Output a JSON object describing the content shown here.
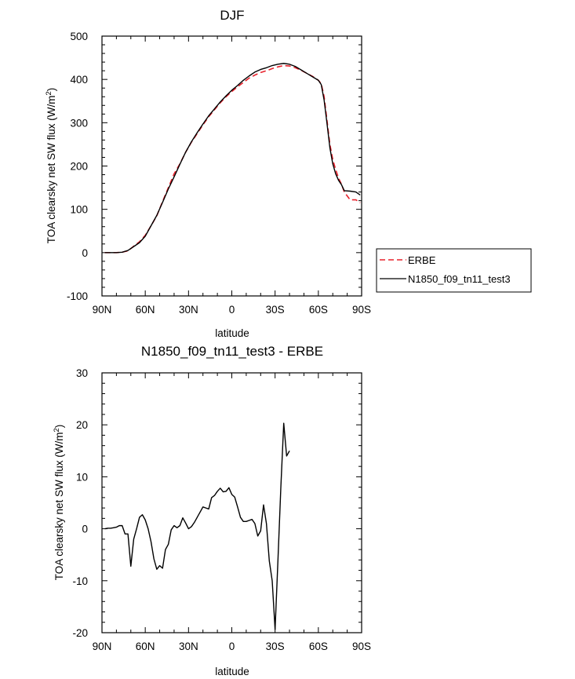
{
  "chart_data": [
    {
      "type": "line",
      "title": "DJF",
      "xlabel": "latitude",
      "ylabel_main": "TOA clearsky net SW flux (W/m",
      "ylabel_sup": "2",
      "ylabel_close": ")",
      "xlim": [
        -90,
        90
      ],
      "ylim": [
        -100,
        500
      ],
      "x_ticks": [
        -90,
        -60,
        -30,
        0,
        30,
        60,
        90
      ],
      "x_tick_labels": [
        "90N",
        "60N",
        "30N",
        "0",
        "30S",
        "60S",
        "90S"
      ],
      "y_ticks": [
        -100,
        0,
        100,
        200,
        300,
        400,
        500
      ],
      "y_tick_labels": [
        "-100",
        "0",
        "100",
        "200",
        "300",
        "400",
        "500"
      ],
      "legend_position": "right",
      "series": [
        {
          "name": "ERBE",
          "color": "#e8222c",
          "dash": "dashed",
          "points": [
            [
              -88,
              0
            ],
            [
              -84,
              0
            ],
            [
              -80,
              0
            ],
            [
              -76,
              1
            ],
            [
              -72,
              4
            ],
            [
              -68,
              15
            ],
            [
              -64,
              25
            ],
            [
              -60,
              40
            ],
            [
              -56,
              62
            ],
            [
              -52,
              85
            ],
            [
              -48,
              118
            ],
            [
              -44,
              150
            ],
            [
              -40,
              182
            ],
            [
              -36,
              205
            ],
            [
              -32,
              232
            ],
            [
              -28,
              255
            ],
            [
              -24,
              275
            ],
            [
              -20,
              295
            ],
            [
              -16,
              314
            ],
            [
              -12,
              330
            ],
            [
              -8,
              346
            ],
            [
              -4,
              360
            ],
            [
              0,
              372
            ],
            [
              4,
              383
            ],
            [
              8,
              393
            ],
            [
              12,
              403
            ],
            [
              16,
              410
            ],
            [
              20,
              416
            ],
            [
              24,
              420
            ],
            [
              28,
              425
            ],
            [
              32,
              429
            ],
            [
              36,
              432
            ],
            [
              40,
              431
            ],
            [
              44,
              427
            ],
            [
              48,
              421
            ],
            [
              52,
              414
            ],
            [
              56,
              407
            ],
            [
              60,
              398
            ],
            [
              62,
              390
            ],
            [
              64,
              360
            ],
            [
              66,
              305
            ],
            [
              68,
              250
            ],
            [
              70,
              215
            ],
            [
              72,
              192
            ],
            [
              74,
              172
            ],
            [
              76,
              158
            ],
            [
              78,
              140
            ],
            [
              82,
              122
            ],
            [
              86,
              122
            ],
            [
              89,
              115
            ]
          ]
        },
        {
          "name": "N1850_f09_tn11_test3",
          "color": "#000000",
          "dash": "solid",
          "points": [
            [
              -88,
              0
            ],
            [
              -84,
              0
            ],
            [
              -80,
              0
            ],
            [
              -76,
              1
            ],
            [
              -72,
              5
            ],
            [
              -68,
              14
            ],
            [
              -64,
              23
            ],
            [
              -60,
              38
            ],
            [
              -56,
              62
            ],
            [
              -52,
              86
            ],
            [
              -48,
              116
            ],
            [
              -44,
              147
            ],
            [
              -40,
              175
            ],
            [
              -36,
              204
            ],
            [
              -32,
              232
            ],
            [
              -28,
              256
            ],
            [
              -24,
              277
            ],
            [
              -20,
              297
            ],
            [
              -16,
              316
            ],
            [
              -12,
              332
            ],
            [
              -8,
              348
            ],
            [
              -4,
              362
            ],
            [
              0,
              375
            ],
            [
              4,
              386
            ],
            [
              8,
              398
            ],
            [
              12,
              408
            ],
            [
              16,
              417
            ],
            [
              20,
              423
            ],
            [
              24,
              427
            ],
            [
              28,
              432
            ],
            [
              32,
              435
            ],
            [
              36,
              437
            ],
            [
              40,
              435
            ],
            [
              44,
              430
            ],
            [
              48,
              422
            ],
            [
              52,
              414
            ],
            [
              56,
              406
            ],
            [
              60,
              398
            ],
            [
              62,
              388
            ],
            [
              64,
              352
            ],
            [
              66,
              298
            ],
            [
              68,
              242
            ],
            [
              70,
              205
            ],
            [
              72,
              182
            ],
            [
              74,
              167
            ],
            [
              76,
              157
            ],
            [
              78,
              143
            ],
            [
              82,
              142
            ],
            [
              86,
              140
            ],
            [
              89,
              133
            ]
          ]
        }
      ]
    },
    {
      "type": "line",
      "title": "N1850_f09_tn11_test3 - ERBE",
      "xlabel": "latitude",
      "ylabel_main": "TOA clearsky net SW flux (W/m",
      "ylabel_sup": "2",
      "ylabel_close": ")",
      "xlim": [
        -90,
        90
      ],
      "ylim": [
        -20,
        30
      ],
      "x_ticks": [
        -90,
        -60,
        -30,
        0,
        30,
        60,
        90
      ],
      "x_tick_labels": [
        "90N",
        "60N",
        "30N",
        "0",
        "30S",
        "60S",
        "90S"
      ],
      "y_ticks": [
        -20,
        -10,
        0,
        10,
        20,
        30
      ],
      "y_tick_labels": [
        "-20",
        "-10",
        "0",
        "10",
        "20",
        "30"
      ],
      "series": [
        {
          "color": "#000000",
          "dash": "solid",
          "points": [
            [
              -88,
              0
            ],
            [
              -86,
              0.1
            ],
            [
              -84,
              0.1
            ],
            [
              -82,
              0.2
            ],
            [
              -80,
              0.3
            ],
            [
              -78,
              0.6
            ],
            [
              -76,
              0.6
            ],
            [
              -74,
              -1.0
            ],
            [
              -72,
              -1.0
            ],
            [
              -70,
              -7.2
            ],
            [
              -68,
              -2.0
            ],
            [
              -66,
              0.0
            ],
            [
              -64,
              2.2
            ],
            [
              -62,
              2.7
            ],
            [
              -60,
              1.7
            ],
            [
              -58,
              0.0
            ],
            [
              -56,
              -2.5
            ],
            [
              -54,
              -5.8
            ],
            [
              -52,
              -7.8
            ],
            [
              -50,
              -7.1
            ],
            [
              -48,
              -7.6
            ],
            [
              -46,
              -4.0
            ],
            [
              -44,
              -3.0
            ],
            [
              -42,
              -0.2
            ],
            [
              -40,
              0.6
            ],
            [
              -38,
              0.2
            ],
            [
              -36,
              0.6
            ],
            [
              -34,
              2.1
            ],
            [
              -32,
              1.1
            ],
            [
              -30,
              0.0
            ],
            [
              -28,
              0.4
            ],
            [
              -26,
              1.2
            ],
            [
              -24,
              2.2
            ],
            [
              -22,
              3.2
            ],
            [
              -20,
              4.2
            ],
            [
              -18,
              4.0
            ],
            [
              -16,
              3.8
            ],
            [
              -14,
              6.0
            ],
            [
              -12,
              6.4
            ],
            [
              -10,
              7.2
            ],
            [
              -8,
              7.8
            ],
            [
              -6,
              7.1
            ],
            [
              -4,
              7.2
            ],
            [
              -2,
              7.9
            ],
            [
              0,
              6.6
            ],
            [
              2,
              6.1
            ],
            [
              4,
              4.2
            ],
            [
              6,
              2.2
            ],
            [
              8,
              1.4
            ],
            [
              10,
              1.4
            ],
            [
              12,
              1.6
            ],
            [
              14,
              1.8
            ],
            [
              16,
              1.0
            ],
            [
              18,
              -1.4
            ],
            [
              20,
              -0.4
            ],
            [
              22,
              4.6
            ],
            [
              24,
              1.0
            ],
            [
              26,
              -6.2
            ],
            [
              28,
              -10.0
            ],
            [
              30,
              -19.4
            ],
            [
              32,
              -6.0
            ],
            [
              34,
              8.0
            ],
            [
              36,
              20.3
            ],
            [
              38,
              14.0
            ],
            [
              40,
              15.0
            ]
          ]
        }
      ]
    }
  ],
  "legend": {
    "items": [
      {
        "label": "ERBE",
        "color": "#e8222c",
        "dash": "dashed"
      },
      {
        "label": "N1850_f09_tn11_test3",
        "color": "#000000",
        "dash": "solid"
      }
    ]
  }
}
